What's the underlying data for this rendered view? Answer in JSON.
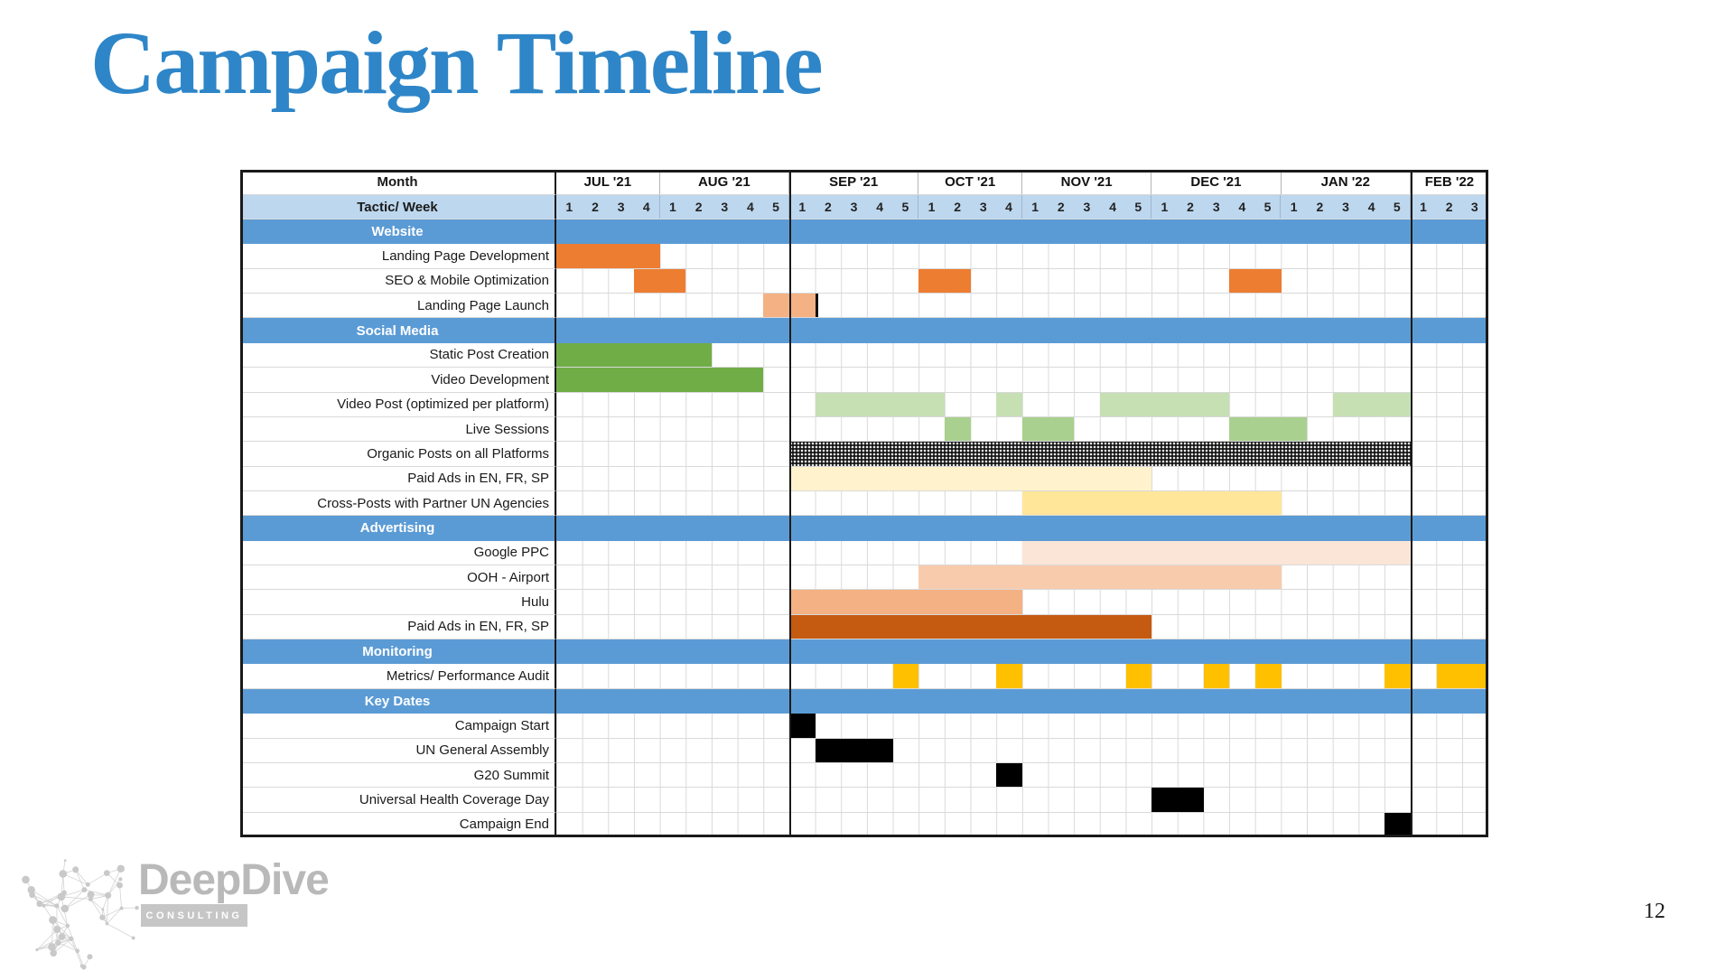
{
  "page": {
    "title": "Campaign Timeline",
    "title_color": "#2E86C8",
    "page_number": "12"
  },
  "logo": {
    "name": "DeepDive",
    "tagline": "CONSULTING",
    "icon": "network-sphere-icon",
    "gray": "#b9b9b9"
  },
  "chart_data": {
    "type": "gantt",
    "title": "Campaign Timeline",
    "corner_labels": {
      "month": "Month",
      "tactic": "Tactic/ Week"
    },
    "months": [
      {
        "label": "JUL '21",
        "weeks": 4
      },
      {
        "label": "AUG '21",
        "weeks": 5
      },
      {
        "label": "SEP '21",
        "weeks": 5
      },
      {
        "label": "OCT '21",
        "weeks": 4
      },
      {
        "label": "NOV '21",
        "weeks": 5
      },
      {
        "label": "DEC '21",
        "weeks": 5
      },
      {
        "label": "JAN '22",
        "weeks": 5
      },
      {
        "label": "FEB '22",
        "weeks": 3
      }
    ],
    "total_weeks": 36,
    "emphasis_lines_before_week": [
      10,
      34
    ],
    "colors": {
      "section_blue": "#5B9BD5",
      "week_row_blue": "#BDD7EE",
      "orange": "#ED7D31",
      "salmon": "#F4B183",
      "peach": "#F8CBAD",
      "light_peach": "#FBE5D6",
      "dark_orange": "#C55A11",
      "green": "#70AD47",
      "medium_green": "#A9D08E",
      "light_green": "#C6E0B4",
      "cream": "#FFF2CC",
      "light_yellow": "#FFE699",
      "gold": "#FFC000",
      "black": "#000000"
    },
    "sections": [
      {
        "title": "Website",
        "rows": [
          {
            "label": "Landing Page Development",
            "bars": [
              {
                "start": 1,
                "end": 4,
                "color": "orange"
              }
            ]
          },
          {
            "label": "SEO & Mobile Optimization",
            "bars": [
              {
                "start": 4,
                "end": 5,
                "color": "orange"
              },
              {
                "start": 15,
                "end": 16,
                "color": "orange"
              },
              {
                "start": 27,
                "end": 28,
                "color": "orange"
              }
            ]
          },
          {
            "label": "Landing Page Launch",
            "bars": [
              {
                "start": 9,
                "end": 10,
                "color": "salmon",
                "end_marker": true
              }
            ]
          }
        ]
      },
      {
        "title": "Social Media",
        "rows": [
          {
            "label": "Static Post Creation",
            "bars": [
              {
                "start": 1,
                "end": 6,
                "color": "green"
              }
            ]
          },
          {
            "label": "Video Development",
            "bars": [
              {
                "start": 1,
                "end": 8,
                "color": "green"
              }
            ]
          },
          {
            "label": "Video Post (optimized per platform)",
            "bars": [
              {
                "start": 11,
                "end": 15,
                "color": "light_green"
              },
              {
                "start": 18,
                "end": 18,
                "color": "light_green"
              },
              {
                "start": 22,
                "end": 26,
                "color": "light_green"
              },
              {
                "start": 31,
                "end": 33,
                "color": "light_green"
              }
            ]
          },
          {
            "label": "Live Sessions",
            "bars": [
              {
                "start": 16,
                "end": 16,
                "color": "medium_green"
              },
              {
                "start": 19,
                "end": 20,
                "color": "medium_green"
              },
              {
                "start": 27,
                "end": 29,
                "color": "medium_green"
              }
            ]
          },
          {
            "label": "Organic Posts on all Platforms",
            "bars": [
              {
                "start": 10,
                "end": 33,
                "color": "black",
                "pattern": "dotted"
              }
            ]
          },
          {
            "label": "Paid Ads in EN, FR, SP",
            "bars": [
              {
                "start": 10,
                "end": 23,
                "color": "cream"
              }
            ]
          },
          {
            "label": "Cross-Posts with Partner UN Agencies",
            "bars": [
              {
                "start": 19,
                "end": 28,
                "color": "light_yellow"
              }
            ]
          }
        ]
      },
      {
        "title": "Advertising",
        "rows": [
          {
            "label": "Google PPC",
            "bars": [
              {
                "start": 19,
                "end": 33,
                "color": "light_peach"
              }
            ]
          },
          {
            "label": "OOH - Airport",
            "bars": [
              {
                "start": 15,
                "end": 28,
                "color": "peach"
              }
            ]
          },
          {
            "label": "Hulu",
            "bars": [
              {
                "start": 10,
                "end": 18,
                "color": "salmon"
              }
            ]
          },
          {
            "label": "Paid Ads in EN, FR, SP",
            "bars": [
              {
                "start": 10,
                "end": 23,
                "color": "dark_orange"
              }
            ]
          }
        ]
      },
      {
        "title": "Monitoring",
        "rows": [
          {
            "label": "Metrics/ Performance Audit",
            "bars": [
              {
                "start": 14,
                "end": 14,
                "color": "gold"
              },
              {
                "start": 18,
                "end": 18,
                "color": "gold"
              },
              {
                "start": 23,
                "end": 23,
                "color": "gold"
              },
              {
                "start": 26,
                "end": 26,
                "color": "gold"
              },
              {
                "start": 28,
                "end": 28,
                "color": "gold"
              },
              {
                "start": 33,
                "end": 33,
                "color": "gold"
              },
              {
                "start": 35,
                "end": 36,
                "color": "gold"
              }
            ]
          }
        ]
      },
      {
        "title": "Key Dates",
        "rows": [
          {
            "label": "Campaign Start",
            "bars": [
              {
                "start": 10,
                "end": 10,
                "color": "black"
              }
            ]
          },
          {
            "label": "UN General Assembly",
            "bars": [
              {
                "start": 11,
                "end": 13,
                "color": "black"
              }
            ]
          },
          {
            "label": "G20 Summit",
            "bars": [
              {
                "start": 18,
                "end": 18,
                "color": "black"
              }
            ]
          },
          {
            "label": "Universal Health Coverage Day",
            "bars": [
              {
                "start": 24,
                "end": 25,
                "color": "black"
              }
            ]
          },
          {
            "label": "Campaign End",
            "bars": [
              {
                "start": 33,
                "end": 33,
                "color": "black"
              }
            ]
          }
        ]
      }
    ]
  }
}
